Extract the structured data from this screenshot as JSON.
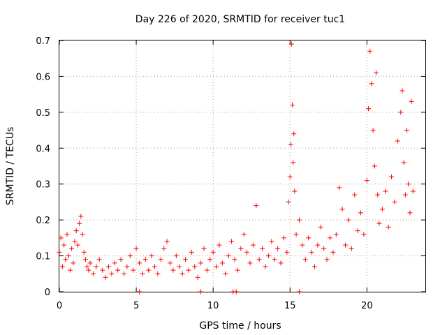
{
  "chart_data": {
    "type": "scatter",
    "title": "Day 226 of 2020, SRMTID for receiver tuc1",
    "xlabel": "GPS time / hours",
    "ylabel": "SRMTID / TECUs",
    "xlim": [
      0,
      23.8
    ],
    "ylim": [
      0,
      0.7
    ],
    "xticks": [
      0,
      5,
      10,
      15,
      20
    ],
    "yticks": [
      0,
      0.1,
      0.2,
      0.3,
      0.4,
      0.5,
      0.6,
      0.7
    ],
    "ytick_labels": [
      "0",
      "0.1",
      "0.2",
      "0.3",
      "0.4",
      "0.5",
      "0.6",
      "0.7"
    ],
    "grid": true,
    "marker": "+",
    "color": "#ff0000",
    "series": [
      {
        "name": "tuc1",
        "points": [
          [
            0.0,
            0.11
          ],
          [
            0.1,
            0.15
          ],
          [
            0.2,
            0.07
          ],
          [
            0.3,
            0.13
          ],
          [
            0.4,
            0.09
          ],
          [
            0.5,
            0.16
          ],
          [
            0.6,
            0.1
          ],
          [
            0.7,
            0.06
          ],
          [
            0.8,
            0.12
          ],
          [
            0.9,
            0.08
          ],
          [
            1.0,
            0.14
          ],
          [
            1.1,
            0.17
          ],
          [
            1.2,
            0.13
          ],
          [
            1.3,
            0.19
          ],
          [
            1.4,
            0.21
          ],
          [
            1.5,
            0.16
          ],
          [
            1.6,
            0.11
          ],
          [
            1.7,
            0.09
          ],
          [
            1.8,
            0.07
          ],
          [
            1.9,
            0.06
          ],
          [
            2.0,
            0.08
          ],
          [
            2.2,
            0.05
          ],
          [
            2.4,
            0.07
          ],
          [
            2.6,
            0.09
          ],
          [
            2.8,
            0.06
          ],
          [
            3.0,
            0.04
          ],
          [
            3.2,
            0.07
          ],
          [
            3.4,
            0.05
          ],
          [
            3.6,
            0.08
          ],
          [
            3.8,
            0.06
          ],
          [
            4.0,
            0.09
          ],
          [
            4.2,
            0.05
          ],
          [
            4.4,
            0.07
          ],
          [
            4.6,
            0.1
          ],
          [
            4.8,
            0.06
          ],
          [
            5.0,
            0.12
          ],
          [
            5.2,
            0.08
          ],
          [
            5.4,
            0.05
          ],
          [
            5.6,
            0.09
          ],
          [
            5.8,
            0.06
          ],
          [
            6.0,
            0.1
          ],
          [
            6.2,
            0.07
          ],
          [
            6.4,
            0.05
          ],
          [
            6.6,
            0.09
          ],
          [
            6.8,
            0.12
          ],
          [
            7.0,
            0.14
          ],
          [
            7.2,
            0.08
          ],
          [
            7.4,
            0.06
          ],
          [
            7.6,
            0.1
          ],
          [
            7.8,
            0.07
          ],
          [
            8.0,
            0.05
          ],
          [
            8.2,
            0.09
          ],
          [
            8.4,
            0.06
          ],
          [
            8.6,
            0.11
          ],
          [
            8.8,
            0.07
          ],
          [
            9.0,
            0.04
          ],
          [
            9.2,
            0.08
          ],
          [
            9.4,
            0.12
          ],
          [
            9.6,
            0.06
          ],
          [
            9.8,
            0.09
          ],
          [
            10.0,
            0.11
          ],
          [
            10.2,
            0.07
          ],
          [
            10.4,
            0.13
          ],
          [
            10.6,
            0.08
          ],
          [
            10.8,
            0.05
          ],
          [
            11.0,
            0.1
          ],
          [
            11.2,
            0.14
          ],
          [
            11.4,
            0.09
          ],
          [
            11.6,
            0.06
          ],
          [
            11.8,
            0.12
          ],
          [
            12.0,
            0.16
          ],
          [
            12.2,
            0.11
          ],
          [
            12.4,
            0.08
          ],
          [
            12.6,
            0.13
          ],
          [
            12.8,
            0.24
          ],
          [
            13.0,
            0.09
          ],
          [
            13.2,
            0.12
          ],
          [
            13.4,
            0.07
          ],
          [
            13.6,
            0.1
          ],
          [
            13.8,
            0.14
          ],
          [
            14.0,
            0.09
          ],
          [
            14.2,
            0.12
          ],
          [
            14.4,
            0.08
          ],
          [
            14.6,
            0.15
          ],
          [
            14.8,
            0.11
          ],
          [
            14.9,
            0.25
          ],
          [
            15.0,
            0.32
          ],
          [
            15.05,
            0.41
          ],
          [
            15.1,
            0.69
          ],
          [
            15.15,
            0.52
          ],
          [
            15.2,
            0.36
          ],
          [
            15.25,
            0.44
          ],
          [
            15.3,
            0.28
          ],
          [
            15.4,
            0.16
          ],
          [
            15.6,
            0.2
          ],
          [
            15.8,
            0.13
          ],
          [
            16.0,
            0.09
          ],
          [
            16.2,
            0.15
          ],
          [
            16.4,
            0.11
          ],
          [
            16.6,
            0.07
          ],
          [
            16.8,
            0.13
          ],
          [
            17.0,
            0.18
          ],
          [
            17.2,
            0.12
          ],
          [
            17.4,
            0.09
          ],
          [
            17.6,
            0.15
          ],
          [
            17.8,
            0.11
          ],
          [
            18.0,
            0.16
          ],
          [
            18.2,
            0.29
          ],
          [
            18.4,
            0.23
          ],
          [
            18.6,
            0.13
          ],
          [
            18.8,
            0.2
          ],
          [
            19.0,
            0.12
          ],
          [
            19.2,
            0.27
          ],
          [
            19.4,
            0.17
          ],
          [
            19.6,
            0.22
          ],
          [
            19.8,
            0.16
          ],
          [
            20.0,
            0.31
          ],
          [
            20.1,
            0.51
          ],
          [
            20.2,
            0.67
          ],
          [
            20.3,
            0.58
          ],
          [
            20.4,
            0.45
          ],
          [
            20.5,
            0.35
          ],
          [
            20.6,
            0.61
          ],
          [
            20.7,
            0.27
          ],
          [
            20.8,
            0.19
          ],
          [
            21.0,
            0.23
          ],
          [
            21.2,
            0.28
          ],
          [
            21.4,
            0.18
          ],
          [
            21.6,
            0.32
          ],
          [
            21.8,
            0.25
          ],
          [
            22.0,
            0.42
          ],
          [
            22.2,
            0.5
          ],
          [
            22.3,
            0.56
          ],
          [
            22.4,
            0.36
          ],
          [
            22.5,
            0.27
          ],
          [
            22.6,
            0.45
          ],
          [
            22.7,
            0.3
          ],
          [
            22.8,
            0.22
          ],
          [
            22.9,
            0.53
          ],
          [
            23.0,
            0.28
          ]
        ]
      }
    ],
    "zero_points_x": [
      5.2,
      9.2,
      11.3,
      11.5,
      15.6
    ]
  }
}
